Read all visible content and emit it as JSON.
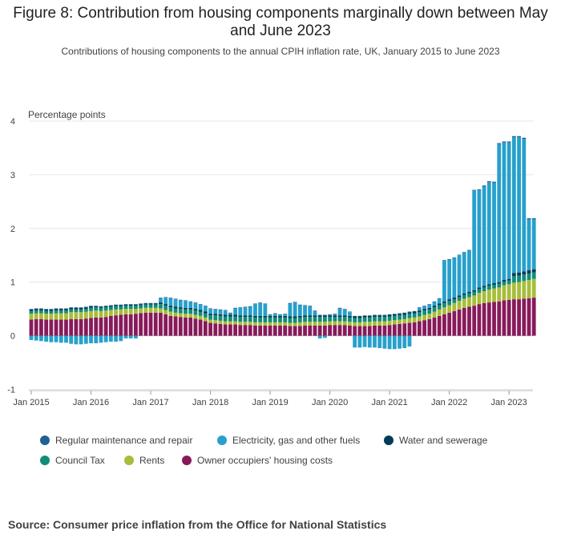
{
  "header": {
    "title": "Figure 8: Contribution from housing components marginally down between May and June 2023",
    "subtitle": "Contributions of housing components to the annual CPIH inflation rate, UK, January 2015 to June 2023"
  },
  "source": "Source: Consumer price inflation from the Office for National Statistics",
  "chart_data": {
    "type": "bar",
    "stacked": true,
    "title": "Figure 8: Contribution from housing components marginally down between May and June 2023",
    "subtitle": "Contributions of housing components to the annual CPIH inflation rate, UK, January 2015 to June 2023",
    "ylabel": "Percentage points",
    "xlabel": "",
    "ylim": [
      -1,
      4
    ],
    "yticks": [
      -1,
      0,
      1,
      2,
      3,
      4
    ],
    "xtick_labels": [
      "Jan 2015",
      "Jan 2016",
      "Jan 2017",
      "Jan 2018",
      "Jan 2019",
      "Jan 2020",
      "Jan 2021",
      "Jan 2022",
      "Jan 2023"
    ],
    "grid": true,
    "legend_position": "bottom",
    "colors": {
      "owner": "#871A5B",
      "rents": "#A8BD3A",
      "council": "#118C7B",
      "water": "#003C57",
      "energy": "#27A0CC",
      "maintenance": "#206095"
    },
    "series": [
      {
        "name": "Owner occupiers' housing costs",
        "key": "owner",
        "values": [
          0.3,
          0.31,
          0.31,
          0.3,
          0.3,
          0.3,
          0.3,
          0.3,
          0.31,
          0.31,
          0.31,
          0.32,
          0.33,
          0.34,
          0.34,
          0.35,
          0.37,
          0.38,
          0.39,
          0.4,
          0.4,
          0.41,
          0.42,
          0.43,
          0.43,
          0.43,
          0.43,
          0.4,
          0.37,
          0.36,
          0.35,
          0.34,
          0.34,
          0.32,
          0.3,
          0.27,
          0.24,
          0.23,
          0.22,
          0.21,
          0.21,
          0.21,
          0.2,
          0.2,
          0.2,
          0.19,
          0.19,
          0.19,
          0.19,
          0.19,
          0.19,
          0.19,
          0.18,
          0.18,
          0.18,
          0.19,
          0.19,
          0.19,
          0.19,
          0.19,
          0.2,
          0.2,
          0.2,
          0.2,
          0.19,
          0.18,
          0.18,
          0.18,
          0.18,
          0.19,
          0.19,
          0.19,
          0.2,
          0.21,
          0.22,
          0.23,
          0.24,
          0.25,
          0.27,
          0.29,
          0.31,
          0.34,
          0.37,
          0.4,
          0.43,
          0.46,
          0.49,
          0.52,
          0.54,
          0.56,
          0.59,
          0.61,
          0.62,
          0.63,
          0.64,
          0.66,
          0.67,
          0.68,
          0.68,
          0.69,
          0.7,
          0.71
        ]
      },
      {
        "name": "Rents",
        "key": "rents",
        "values": [
          0.11,
          0.11,
          0.11,
          0.11,
          0.11,
          0.12,
          0.12,
          0.12,
          0.13,
          0.13,
          0.13,
          0.13,
          0.13,
          0.13,
          0.12,
          0.12,
          0.11,
          0.11,
          0.1,
          0.1,
          0.1,
          0.09,
          0.09,
          0.09,
          0.09,
          0.09,
          0.08,
          0.08,
          0.08,
          0.07,
          0.07,
          0.07,
          0.07,
          0.07,
          0.07,
          0.07,
          0.06,
          0.06,
          0.06,
          0.06,
          0.06,
          0.06,
          0.06,
          0.06,
          0.06,
          0.06,
          0.06,
          0.06,
          0.06,
          0.06,
          0.06,
          0.06,
          0.06,
          0.06,
          0.07,
          0.07,
          0.07,
          0.07,
          0.07,
          0.07,
          0.07,
          0.07,
          0.07,
          0.07,
          0.07,
          0.07,
          0.07,
          0.08,
          0.08,
          0.08,
          0.08,
          0.08,
          0.08,
          0.08,
          0.08,
          0.08,
          0.09,
          0.09,
          0.09,
          0.1,
          0.1,
          0.11,
          0.12,
          0.13,
          0.14,
          0.15,
          0.16,
          0.17,
          0.18,
          0.19,
          0.21,
          0.22,
          0.24,
          0.25,
          0.26,
          0.28,
          0.29,
          0.31,
          0.32,
          0.33,
          0.34,
          0.35
        ]
      },
      {
        "name": "Council Tax",
        "key": "council",
        "values": [
          0.05,
          0.05,
          0.05,
          0.05,
          0.05,
          0.05,
          0.05,
          0.05,
          0.05,
          0.05,
          0.05,
          0.05,
          0.06,
          0.06,
          0.06,
          0.06,
          0.06,
          0.06,
          0.06,
          0.06,
          0.06,
          0.06,
          0.06,
          0.06,
          0.06,
          0.06,
          0.08,
          0.08,
          0.08,
          0.08,
          0.08,
          0.08,
          0.08,
          0.08,
          0.08,
          0.08,
          0.08,
          0.09,
          0.09,
          0.09,
          0.09,
          0.09,
          0.09,
          0.09,
          0.09,
          0.09,
          0.09,
          0.09,
          0.09,
          0.09,
          0.09,
          0.09,
          0.09,
          0.09,
          0.09,
          0.09,
          0.09,
          0.09,
          0.09,
          0.09,
          0.08,
          0.08,
          0.08,
          0.08,
          0.08,
          0.08,
          0.08,
          0.08,
          0.08,
          0.08,
          0.08,
          0.08,
          0.08,
          0.08,
          0.08,
          0.08,
          0.08,
          0.08,
          0.08,
          0.08,
          0.08,
          0.08,
          0.08,
          0.08,
          0.08,
          0.07,
          0.07,
          0.07,
          0.07,
          0.07,
          0.07,
          0.07,
          0.07,
          0.07,
          0.07,
          0.07,
          0.07,
          0.12,
          0.12,
          0.12,
          0.12,
          0.12
        ]
      },
      {
        "name": "Water and sewerage",
        "key": "water",
        "values": [
          0.03,
          0.03,
          0.03,
          0.03,
          0.03,
          0.03,
          0.03,
          0.03,
          0.03,
          0.03,
          0.03,
          0.03,
          0.03,
          0.02,
          0.02,
          0.02,
          0.02,
          0.02,
          0.02,
          0.02,
          0.02,
          0.02,
          0.02,
          0.02,
          0.02,
          0.02,
          0.03,
          0.03,
          0.03,
          0.03,
          0.03,
          0.03,
          0.03,
          0.03,
          0.03,
          0.03,
          0.03,
          0.03,
          0.03,
          0.03,
          0.03,
          0.03,
          0.03,
          0.03,
          0.03,
          0.03,
          0.03,
          0.03,
          0.03,
          0.03,
          0.03,
          0.03,
          0.03,
          0.03,
          0.03,
          0.03,
          0.03,
          0.03,
          0.03,
          0.03,
          0.03,
          0.03,
          0.03,
          0.03,
          0.03,
          0.03,
          0.03,
          0.03,
          0.03,
          0.03,
          0.03,
          0.03,
          0.03,
          0.03,
          0.03,
          0.03,
          0.03,
          0.03,
          0.03,
          0.03,
          0.03,
          0.03,
          0.03,
          0.03,
          0.03,
          0.03,
          0.03,
          0.03,
          0.03,
          0.03,
          0.03,
          0.03,
          0.03,
          0.03,
          0.03,
          0.03,
          0.03,
          0.06,
          0.06,
          0.06,
          0.06,
          0.06
        ]
      },
      {
        "name": "Electricity, gas and other fuels",
        "key": "energy",
        "values": [
          -0.08,
          -0.09,
          -0.1,
          -0.11,
          -0.12,
          -0.12,
          -0.13,
          -0.13,
          -0.15,
          -0.16,
          -0.16,
          -0.15,
          -0.14,
          -0.14,
          -0.13,
          -0.12,
          -0.11,
          -0.11,
          -0.1,
          -0.05,
          -0.05,
          -0.05,
          0.0,
          0.0,
          0.0,
          0.0,
          0.08,
          0.12,
          0.14,
          0.14,
          0.13,
          0.13,
          0.11,
          0.11,
          0.1,
          0.1,
          0.09,
          0.08,
          0.08,
          0.08,
          0.03,
          0.12,
          0.14,
          0.15,
          0.16,
          0.22,
          0.24,
          0.22,
          0.02,
          0.04,
          0.02,
          0.03,
          0.24,
          0.26,
          0.2,
          0.18,
          0.17,
          0.08,
          -0.05,
          -0.04,
          0.01,
          0.02,
          0.13,
          0.11,
          0.07,
          -0.22,
          -0.22,
          -0.21,
          -0.22,
          -0.22,
          -0.23,
          -0.24,
          -0.25,
          -0.25,
          -0.24,
          -0.23,
          -0.2,
          0.0,
          0.05,
          0.05,
          0.06,
          0.07,
          0.09,
          0.76,
          0.74,
          0.74,
          0.75,
          0.76,
          0.77,
          1.86,
          1.82,
          1.85,
          1.9,
          1.87,
          2.57,
          2.56,
          2.54,
          2.53,
          2.52,
          2.47,
          0.95,
          0.93,
          0.89
        ]
      },
      {
        "name": "Regular maintenance and repair",
        "key": "maintenance",
        "values": [
          0.01,
          0.01,
          0.01,
          0.01,
          0.01,
          0.01,
          0.01,
          0.01,
          0.01,
          0.01,
          0.01,
          0.01,
          0.01,
          0.01,
          0.01,
          0.01,
          0.01,
          0.01,
          0.01,
          0.01,
          0.01,
          0.01,
          0.01,
          0.01,
          0.01,
          0.01,
          0.01,
          0.01,
          0.01,
          0.01,
          0.01,
          0.01,
          0.01,
          0.01,
          0.01,
          0.01,
          0.01,
          0.01,
          0.01,
          0.01,
          0.01,
          0.01,
          0.01,
          0.01,
          0.01,
          0.01,
          0.01,
          0.01,
          0.01,
          0.01,
          0.01,
          0.01,
          0.01,
          0.01,
          0.01,
          0.01,
          0.01,
          0.01,
          0.01,
          0.01,
          0.01,
          0.01,
          0.01,
          0.01,
          0.01,
          0.01,
          0.01,
          0.01,
          0.01,
          0.01,
          0.01,
          0.01,
          0.01,
          0.01,
          0.01,
          0.01,
          0.01,
          0.01,
          0.01,
          0.01,
          0.01,
          0.01,
          0.01,
          0.01,
          0.01,
          0.01,
          0.01,
          0.01,
          0.01,
          0.01,
          0.01,
          0.02,
          0.02,
          0.02,
          0.02,
          0.02,
          0.02,
          0.02,
          0.02,
          0.02,
          0.02,
          0.02,
          0.02
        ]
      }
    ]
  },
  "legend": [
    {
      "label": "Regular maintenance and repair",
      "color": "#206095"
    },
    {
      "label": "Electricity, gas and other fuels",
      "color": "#27A0CC"
    },
    {
      "label": "Water and sewerage",
      "color": "#003C57"
    },
    {
      "label": "Council Tax",
      "color": "#118C7B"
    },
    {
      "label": "Rents",
      "color": "#A8BD3A"
    },
    {
      "label": "Owner occupiers' housing costs",
      "color": "#871A5B"
    }
  ]
}
